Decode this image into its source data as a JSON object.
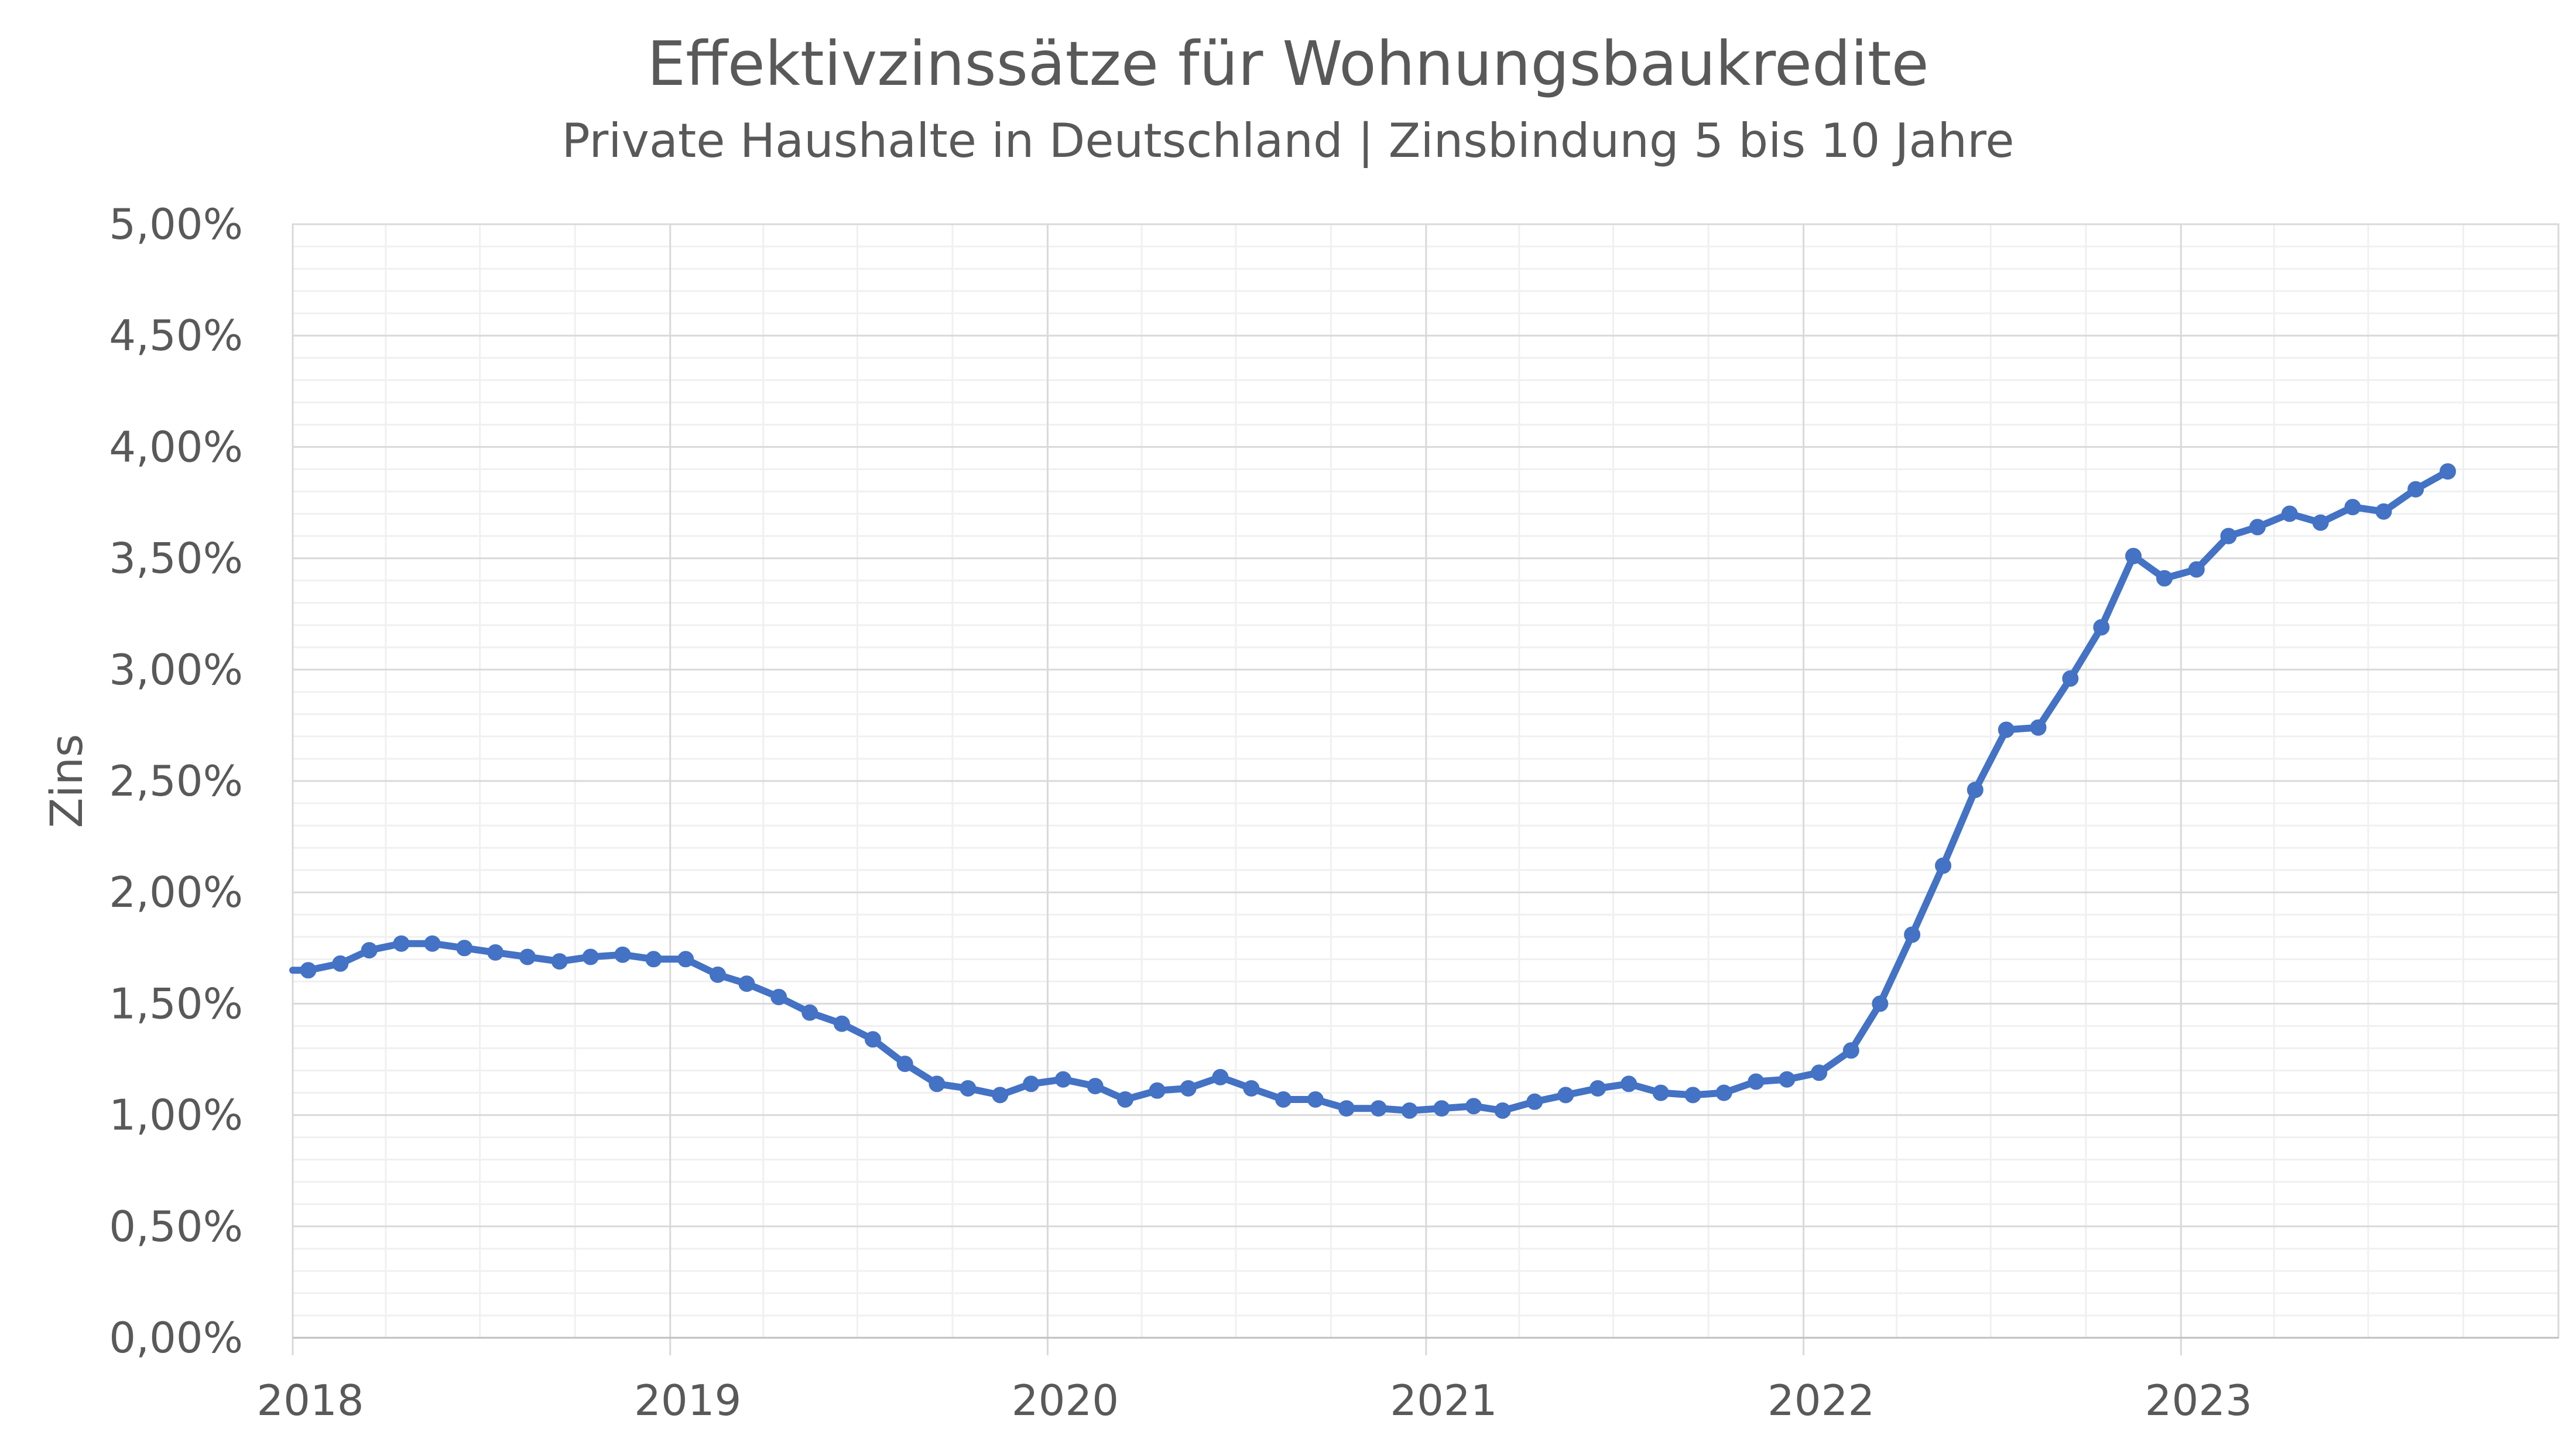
{
  "chart_data": {
    "type": "line",
    "title": "Effektivzinssätze für Wohnungsbaukredite",
    "subtitle": "Private Haushalte in Deutschland | Zinsbindung 5 bis 10 Jahre",
    "xlabel": "",
    "ylabel": "Zins",
    "x_ticks": [
      "2018",
      "2019",
      "2020",
      "2021",
      "2022",
      "2023"
    ],
    "y_ticks": [
      "0,00%",
      "0,50%",
      "1,00%",
      "1,50%",
      "2,00%",
      "2,50%",
      "3,00%",
      "3,50%",
      "4,00%",
      "4,50%",
      "5,00%"
    ],
    "ylim": [
      0,
      5
    ],
    "grid": true,
    "legend": "none",
    "series": [
      {
        "x": [
          "2018-01",
          "2018-02",
          "2018-03",
          "2018-04",
          "2018-05",
          "2018-06",
          "2018-07",
          "2018-08",
          "2018-09",
          "2018-10",
          "2018-11",
          "2018-12",
          "2019-01",
          "2019-02",
          "2019-03",
          "2019-04",
          "2019-05",
          "2019-06",
          "2019-07",
          "2019-08",
          "2019-09",
          "2019-10",
          "2019-11",
          "2019-12",
          "2020-01",
          "2020-02",
          "2020-03",
          "2020-04",
          "2020-05",
          "2020-06",
          "2020-07",
          "2020-08",
          "2020-09",
          "2020-10",
          "2020-11",
          "2020-12",
          "2021-01",
          "2021-02",
          "2021-03",
          "2021-04",
          "2021-05",
          "2021-06",
          "2021-07",
          "2021-08",
          "2021-09",
          "2021-10",
          "2021-11",
          "2021-12",
          "2022-01",
          "2022-02",
          "2022-03",
          "2022-04",
          "2022-05",
          "2022-06",
          "2022-07",
          "2022-08",
          "2022-09",
          "2022-10",
          "2022-11",
          "2022-12",
          "2023-01",
          "2023-02",
          "2023-03",
          "2023-04",
          "2023-05",
          "2023-06",
          "2023-07",
          "2023-08",
          "2023-09"
        ],
        "values": [
          1.65,
          1.68,
          1.74,
          1.77,
          1.77,
          1.75,
          1.73,
          1.71,
          1.69,
          1.71,
          1.72,
          1.7,
          1.7,
          1.63,
          1.59,
          1.53,
          1.46,
          1.41,
          1.34,
          1.23,
          1.14,
          1.12,
          1.09,
          1.14,
          1.16,
          1.13,
          1.07,
          1.11,
          1.12,
          1.17,
          1.12,
          1.07,
          1.07,
          1.03,
          1.03,
          1.02,
          1.03,
          1.04,
          1.02,
          1.06,
          1.09,
          1.12,
          1.14,
          1.1,
          1.09,
          1.1,
          1.15,
          1.16,
          1.19,
          1.29,
          1.5,
          1.81,
          2.12,
          2.46,
          2.73,
          2.74,
          2.96,
          3.19,
          3.51,
          3.41,
          3.45,
          3.6,
          3.64,
          3.7,
          3.66,
          3.73,
          3.71,
          3.81,
          3.89
        ],
        "color": "#4472C4"
      }
    ],
    "colors": {
      "line": "#4472C4",
      "grid_major": "#d9d9d9",
      "grid_minor": "#f0f0f0",
      "text": "#595959"
    }
  }
}
